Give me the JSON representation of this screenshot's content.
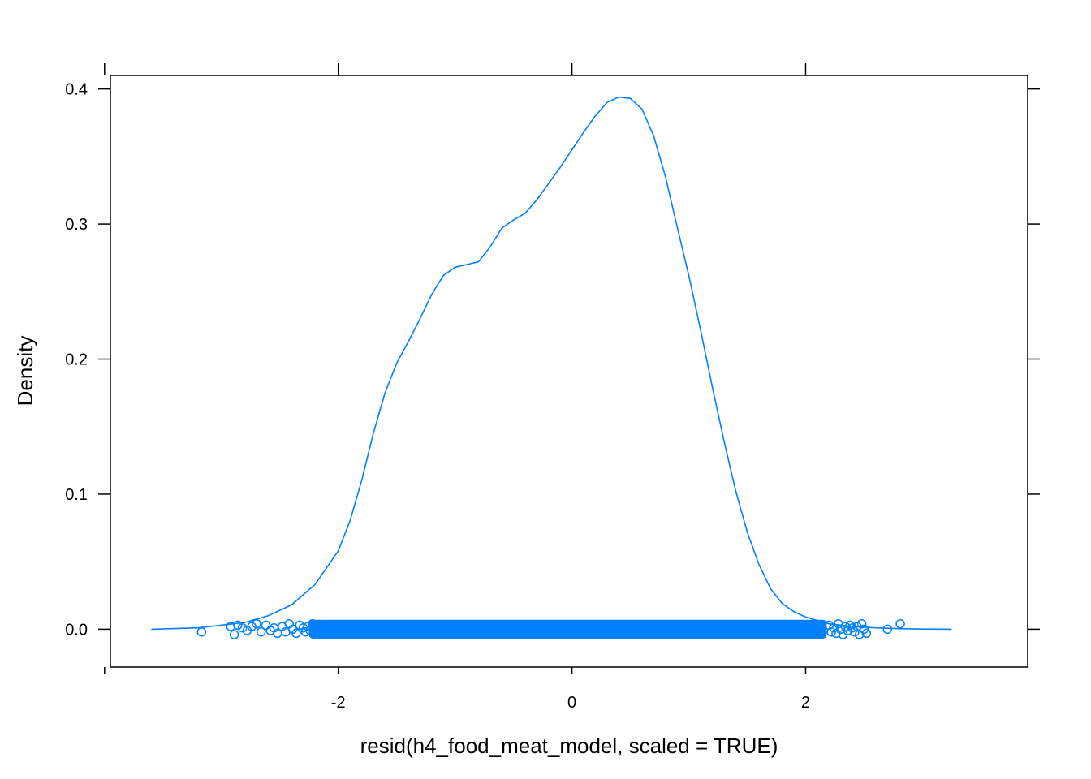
{
  "chart_data": {
    "type": "line",
    "xlabel": "resid(h4_food_meat_model, scaled = TRUE)",
    "ylabel": "Density",
    "xlim": [
      -3.95,
      3.9
    ],
    "ylim": [
      -0.028,
      0.41
    ],
    "x_ticks": [
      -2,
      0,
      2
    ],
    "x_tick_labels": [
      "-2",
      "0",
      "2"
    ],
    "y_ticks": [
      0.0,
      0.1,
      0.2,
      0.3,
      0.4
    ],
    "y_tick_labels": [
      "0.0",
      "0.1",
      "0.2",
      "0.3",
      "0.4"
    ],
    "grid": false,
    "legend": "none",
    "line_color": "#0080FF",
    "point_color": "#0080FF",
    "series": [
      {
        "type": "density",
        "x": [
          -3.6,
          -3.2,
          -2.8,
          -2.6,
          -2.4,
          -2.2,
          -2.0,
          -1.9,
          -1.8,
          -1.7,
          -1.6,
          -1.5,
          -1.4,
          -1.3,
          -1.2,
          -1.1,
          -1.0,
          -0.9,
          -0.8,
          -0.7,
          -0.6,
          -0.5,
          -0.4,
          -0.3,
          -0.2,
          -0.1,
          0.0,
          0.1,
          0.2,
          0.3,
          0.4,
          0.5,
          0.6,
          0.7,
          0.8,
          0.9,
          1.0,
          1.1,
          1.2,
          1.3,
          1.4,
          1.5,
          1.6,
          1.7,
          1.8,
          1.9,
          2.0,
          2.2,
          2.4,
          2.6,
          2.8,
          3.0,
          3.25
        ],
        "y": [
          0.0,
          0.001,
          0.005,
          0.01,
          0.018,
          0.033,
          0.058,
          0.08,
          0.11,
          0.145,
          0.175,
          0.197,
          0.213,
          0.23,
          0.248,
          0.262,
          0.268,
          0.27,
          0.272,
          0.283,
          0.297,
          0.303,
          0.308,
          0.318,
          0.33,
          0.342,
          0.355,
          0.368,
          0.38,
          0.39,
          0.394,
          0.393,
          0.385,
          0.365,
          0.335,
          0.298,
          0.262,
          0.222,
          0.18,
          0.14,
          0.103,
          0.072,
          0.048,
          0.03,
          0.019,
          0.013,
          0.009,
          0.004,
          0.002,
          0.001,
          0.0004,
          0.0001,
          0.0
        ]
      },
      {
        "type": "rug-points",
        "x": [
          -3.17,
          -2.92,
          -2.89,
          -2.86,
          -2.82,
          -2.78,
          -2.74,
          -2.7,
          -2.66,
          -2.62,
          -2.58,
          -2.55,
          -2.52,
          -2.48,
          -2.45,
          -2.42,
          -2.39,
          -2.36,
          -2.33,
          -2.3,
          -2.28,
          -2.26,
          -2.24,
          -2.22,
          2.2,
          2.22,
          2.24,
          2.26,
          2.28,
          2.3,
          2.32,
          2.34,
          2.36,
          2.38,
          2.4,
          2.42,
          2.44,
          2.46,
          2.48,
          2.5,
          2.52,
          2.7,
          2.81
        ],
        "y": [
          -0.002,
          0.002,
          -0.004,
          0.003,
          0.001,
          -0.001,
          0.002,
          0.004,
          -0.002,
          0.003,
          -0.001,
          0.001,
          -0.003,
          0.002,
          -0.002,
          0.004,
          0.0,
          -0.003,
          0.003,
          0.001,
          -0.002,
          0.002,
          -0.001,
          0.004,
          0.003,
          -0.002,
          0.001,
          -0.003,
          0.004,
          0.0,
          -0.004,
          0.002,
          -0.001,
          0.003,
          0.001,
          -0.002,
          0.002,
          -0.004,
          0.004,
          0.0,
          -0.003,
          0.0,
          0.004
        ]
      }
    ]
  }
}
